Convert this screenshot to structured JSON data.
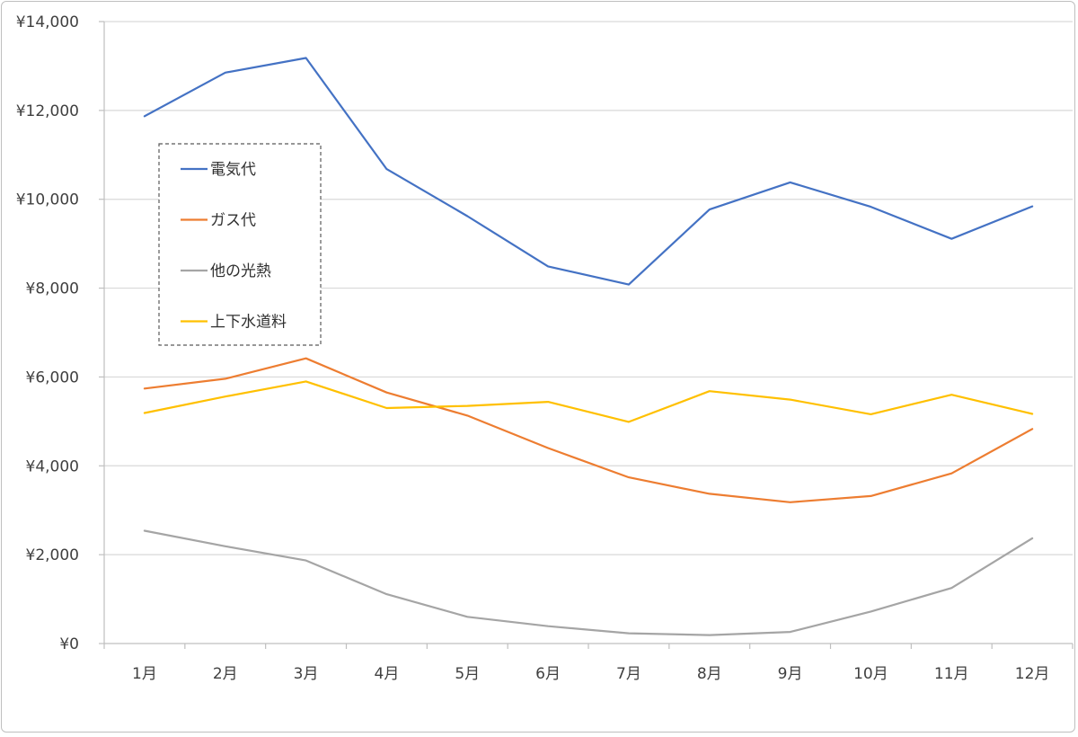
{
  "chart_data": {
    "type": "line",
    "title": "",
    "xlabel": "",
    "ylabel": "",
    "categories": [
      "1月",
      "2月",
      "3月",
      "4月",
      "5月",
      "6月",
      "7月",
      "8月",
      "9月",
      "10月",
      "11月",
      "12月"
    ],
    "ylim": [
      0,
      14000
    ],
    "yticks": [
      0,
      2000,
      4000,
      6000,
      8000,
      10000,
      12000,
      14000
    ],
    "ytick_labels": [
      "¥0",
      "¥2,000",
      "¥4,000",
      "¥6,000",
      "¥8,000",
      "¥10,000",
      "¥12,000",
      "¥14,000"
    ],
    "grid": true,
    "legend_position": "upper-left inside plot (dashed box)",
    "series": [
      {
        "name": "電気代",
        "color": "#4472c4",
        "values": [
          11870,
          12850,
          13180,
          10680,
          9620,
          8490,
          8080,
          9770,
          10380,
          9830,
          9110,
          9840
        ]
      },
      {
        "name": "ガス代",
        "color": "#ed7d31",
        "values": [
          5740,
          5960,
          6420,
          5650,
          5130,
          4400,
          3740,
          3370,
          3180,
          3320,
          3830,
          4830
        ]
      },
      {
        "name": "他の光熱",
        "color": "#a5a5a5",
        "values": [
          2540,
          2190,
          1870,
          1110,
          600,
          390,
          230,
          190,
          260,
          720,
          1250,
          2370
        ]
      },
      {
        "name": "上下水道料",
        "color": "#ffc000",
        "values": [
          5190,
          5560,
          5900,
          5300,
          5350,
          5440,
          4990,
          5680,
          5490,
          5160,
          5600,
          5170
        ]
      }
    ]
  }
}
